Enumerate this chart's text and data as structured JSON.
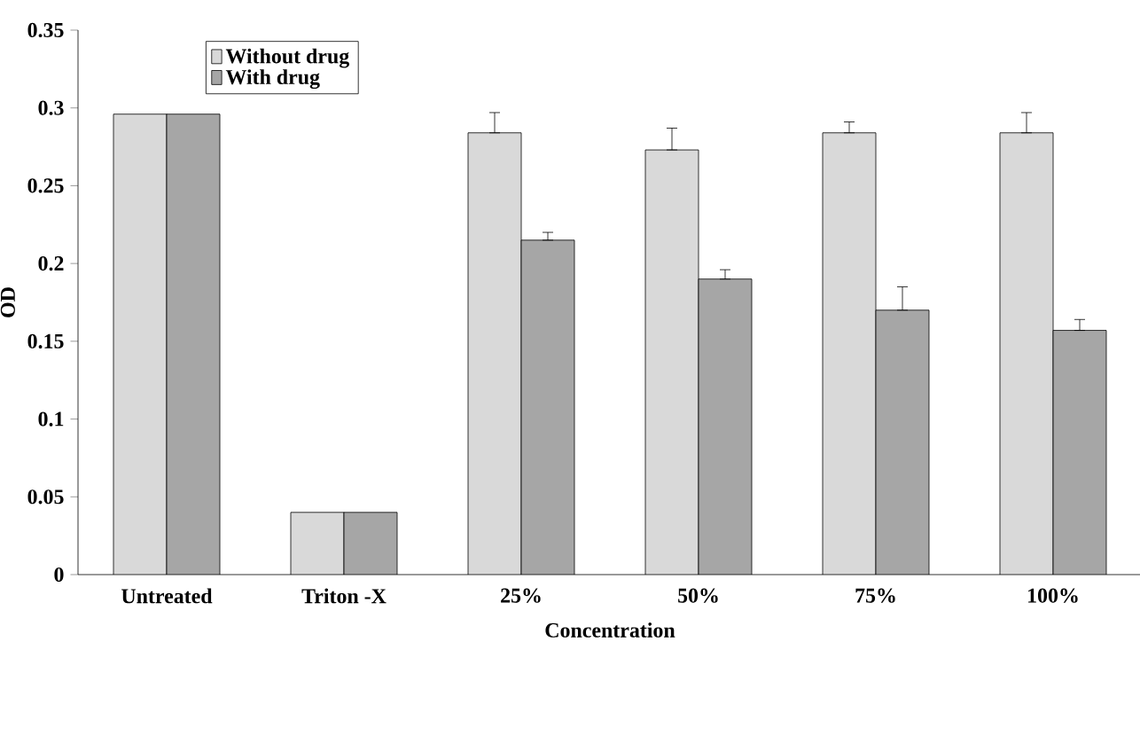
{
  "chart_data": {
    "type": "bar",
    "xlabel": "Concentration",
    "ylabel": "OD",
    "categories": [
      "Untreated",
      "Triton -X",
      "25%",
      "50%",
      "75%",
      "100%"
    ],
    "series": [
      {
        "name": "Without drug",
        "color": "#d9d9d9",
        "values": [
          0.296,
          0.04,
          0.284,
          0.273,
          0.284,
          0.284
        ],
        "errors": [
          null,
          null,
          [
            0.284,
            0.297
          ],
          [
            0.273,
            0.287
          ],
          [
            0.284,
            0.291
          ],
          [
            0.284,
            0.297
          ]
        ]
      },
      {
        "name": "With drug",
        "color": "#a6a6a6",
        "values": [
          0.296,
          0.04,
          0.215,
          0.19,
          0.17,
          0.157
        ],
        "errors": [
          null,
          null,
          [
            0.215,
            0.22
          ],
          [
            0.19,
            0.196
          ],
          [
            0.17,
            0.185
          ],
          [
            0.157,
            0.164
          ]
        ]
      }
    ],
    "ylim": [
      0,
      0.35
    ],
    "yticks": [
      0,
      0.05,
      0.1,
      0.15,
      0.2,
      0.25,
      0.3,
      0.35
    ],
    "legend": "top left"
  }
}
